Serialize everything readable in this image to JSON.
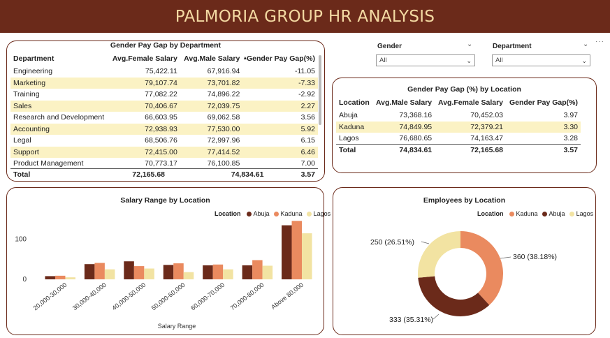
{
  "title": "PALMORIA GROUP HR ANALYSIS",
  "colors": {
    "abuja": "#6b2a1a",
    "kaduna": "#ea8a5f",
    "lagos": "#f2e3a2",
    "header": "#6b2a1a",
    "title_text": "#f3d9a2"
  },
  "dept_table": {
    "title": "Gender Pay Gap by Department",
    "headers": [
      "Department",
      "Avg.Female Salary",
      "Avg.Male Salary",
      "Gender Pay Gap(%)"
    ],
    "sort_icon": "sort-desc-icon",
    "rows": [
      [
        "Engineering",
        "75,422.11",
        "67,916.94",
        "-11.05"
      ],
      [
        "Marketing",
        "79,107.74",
        "73,701.82",
        "-7.33"
      ],
      [
        "Training",
        "77,082.22",
        "74,896.22",
        "-2.92"
      ],
      [
        "Sales",
        "70,406.67",
        "72,039.75",
        "2.27"
      ],
      [
        "Research and Development",
        "66,603.95",
        "69,062.58",
        "3.56"
      ],
      [
        "Accounting",
        "72,938.93",
        "77,530.00",
        "5.92"
      ],
      [
        "Legal",
        "68,506.76",
        "72,997.96",
        "6.15"
      ],
      [
        "Support",
        "72,415.00",
        "77,414.52",
        "6.46"
      ],
      [
        "Product Management",
        "70,773.17",
        "76,100.85",
        "7.00"
      ]
    ],
    "total": [
      "Total",
      "72,165.68",
      "74,834.61",
      "3.57"
    ]
  },
  "slicers": [
    {
      "label": "Gender",
      "value": "All"
    },
    {
      "label": "Department",
      "value": "All"
    }
  ],
  "loc_table": {
    "title": "Gender Pay Gap (%) by Location",
    "headers": [
      "Location",
      "Avg.Male Salary",
      "Avg.Female Salary",
      "Gender Pay Gap(%)"
    ],
    "rows": [
      [
        "Abuja",
        "73,368.16",
        "70,452.03",
        "3.97"
      ],
      [
        "Kaduna",
        "74,849.95",
        "72,379.21",
        "3.30"
      ],
      [
        "Lagos",
        "76,680.65",
        "74,163.47",
        "3.28"
      ]
    ],
    "total": [
      "Total",
      "74,834.61",
      "72,165.68",
      "3.57"
    ]
  },
  "chart_data": [
    {
      "type": "bar",
      "title": "Salary Range by Location",
      "legend_title": "Location",
      "legend_position": "top-right",
      "xlabel": "Salary Range",
      "ylabel": "",
      "ylim": [
        0,
        150
      ],
      "yticks": [
        0,
        100
      ],
      "grid": false,
      "categories": [
        "20,000-30,000",
        "30,000-40,000",
        "40,000-50,000",
        "50,000-60,000",
        "60,000-70,000",
        "70,000-80,000",
        "Above 80,000"
      ],
      "series": [
        {
          "name": "Abuja",
          "values": [
            8,
            38,
            45,
            36,
            35,
            35,
            135
          ]
        },
        {
          "name": "Kaduna",
          "values": [
            9,
            41,
            33,
            40,
            37,
            48,
            146
          ]
        },
        {
          "name": "Lagos",
          "values": [
            5,
            25,
            27,
            18,
            25,
            34,
            115
          ]
        }
      ]
    },
    {
      "type": "pie",
      "title": "Employees by Location",
      "legend_title": "Location",
      "legend_position": "top-right",
      "categories": [
        "Kaduna",
        "Abuja",
        "Lagos"
      ],
      "values": [
        360,
        333,
        250
      ],
      "labels": [
        "360 (38.18%)",
        "333 (35.31%)",
        "250 (26.51%)"
      ]
    }
  ]
}
